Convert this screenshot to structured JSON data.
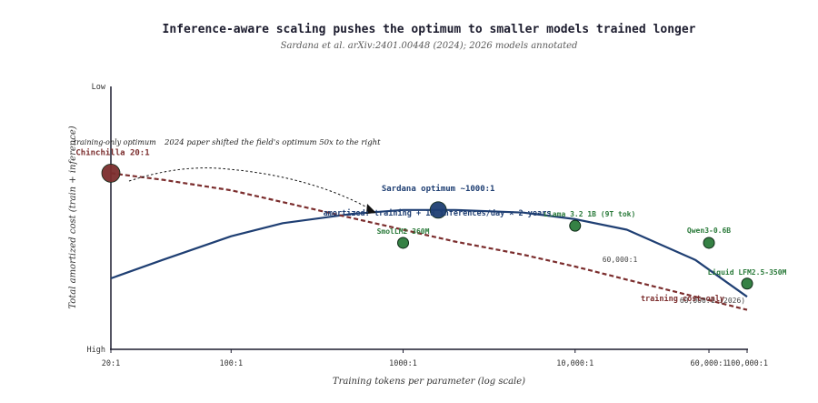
{
  "chart_data": {
    "type": "line",
    "title": "Inference-aware scaling pushes the optimum to smaller models trained longer",
    "subtitle": "Sardana et al. arXiv:2401.00448 (2024); 2026 models annotated",
    "xlabel": "Training tokens per parameter (log scale)",
    "ylabel": "Total amortized cost (train + inference)",
    "x_scale": "log",
    "xlim": [
      20,
      100000
    ],
    "ylim": [
      0,
      1
    ],
    "x_ticks": [
      {
        "value": 20,
        "label": "20:1"
      },
      {
        "value": 100,
        "label": "100:1"
      },
      {
        "value": 1000,
        "label": "1000:1"
      },
      {
        "value": 10000,
        "label": "10,000:1"
      },
      {
        "value": 60000,
        "label": "60,000:1"
      },
      {
        "value": 100000,
        "label": "100,000:1"
      }
    ],
    "y_ticks": [
      {
        "value": 1,
        "label": "Low"
      },
      {
        "value": 0,
        "label": "High"
      }
    ],
    "series": [
      {
        "name": "amortized: training + 1B inferences/day × 2 years",
        "color": "#1f3f73",
        "style": "solid",
        "x": [
          20,
          40,
          100,
          200,
          500,
          1000,
          2000,
          5000,
          10000,
          20000,
          50000,
          100000
        ],
        "y": [
          0.27,
          0.34,
          0.43,
          0.48,
          0.515,
          0.53,
          0.53,
          0.52,
          0.495,
          0.455,
          0.34,
          0.2
        ]
      },
      {
        "name": "training cost only",
        "color": "#7b2d2d",
        "style": "dashed",
        "x": [
          20,
          40,
          100,
          200,
          500,
          1000,
          2000,
          5000,
          10000,
          20000,
          50000,
          100000
        ],
        "y": [
          0.67,
          0.645,
          0.605,
          0.56,
          0.5,
          0.455,
          0.41,
          0.36,
          0.315,
          0.265,
          0.2,
          0.15
        ]
      }
    ],
    "points": [
      {
        "label": "Chinchilla 20:1",
        "x": 20,
        "y": 0.67,
        "color": "#7b2d2d"
      },
      {
        "label": "Sardana optimum ~1000:1",
        "x": 1600,
        "y": 0.53,
        "color": "#1f3f73"
      },
      {
        "label": "SmolLM2 360M",
        "x": 1000,
        "y": 0.405,
        "color": "#2a7a3a"
      },
      {
        "label": "Llama 3.2 1B (9T tok)",
        "x": 10000,
        "y": 0.47,
        "color": "#2a7a3a"
      },
      {
        "label": "Qwen3-0.6B",
        "x": 60000,
        "y": 0.405,
        "color": "#2a7a3a"
      },
      {
        "label": "Liquid LFM2.5-350M",
        "x": 100000,
        "y": 0.25,
        "color": "#2a7a3a"
      }
    ],
    "annotations": [
      {
        "text": "training-only optimum"
      },
      {
        "text": "2024 paper shifted the field's optimum 50x to the right"
      },
      {
        "text": "60,000:1"
      },
      {
        "text": "60,000:1 (2026)"
      }
    ],
    "grid": false,
    "legend": "inline labels"
  }
}
